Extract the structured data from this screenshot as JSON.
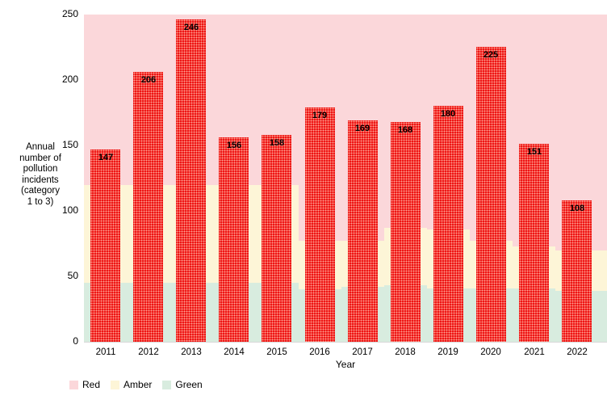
{
  "chart_data": {
    "type": "bar",
    "xlabel": "Year",
    "ylabel": "Annual\nnumber of\npollution\nincidents\n(category\n1 to 3)",
    "ylim": [
      0,
      250
    ],
    "y_ticks": [
      0,
      50,
      100,
      150,
      200,
      250
    ],
    "categories": [
      "2011",
      "2012",
      "2013",
      "2014",
      "2015",
      "2016",
      "2017",
      "2018",
      "2019",
      "2020",
      "2021",
      "2022"
    ],
    "series": [
      {
        "name": "Annual number of pollution incidents (category 1 to 3)",
        "values": [
          147,
          206,
          246,
          156,
          158,
          179,
          169,
          168,
          180,
          225,
          151,
          108
        ]
      }
    ],
    "bar_value_labels": true,
    "bar_color": "#ee1111",
    "bar_pattern": "dotted",
    "grid": false,
    "legend_position": "bottom-left",
    "legend": [
      {
        "label": "Red",
        "color": "#fbd7da"
      },
      {
        "label": "Amber",
        "color": "#fdf5d7"
      },
      {
        "label": "Green",
        "color": "#d8ecdf"
      }
    ],
    "rag_bands_per_year": [
      {
        "year": "2011",
        "green_max": 45,
        "amber_max": 120
      },
      {
        "year": "2012",
        "green_max": 45,
        "amber_max": 120
      },
      {
        "year": "2013",
        "green_max": 45,
        "amber_max": 120
      },
      {
        "year": "2014",
        "green_max": 45,
        "amber_max": 120
      },
      {
        "year": "2015",
        "green_max": 45,
        "amber_max": 120
      },
      {
        "year": "2016",
        "green_max": 40,
        "amber_max": 77
      },
      {
        "year": "2017",
        "green_max": 42,
        "amber_max": 77
      },
      {
        "year": "2018",
        "green_max": 43,
        "amber_max": 87
      },
      {
        "year": "2019",
        "green_max": 41,
        "amber_max": 86
      },
      {
        "year": "2020",
        "green_max": 41,
        "amber_max": 77
      },
      {
        "year": "2021",
        "green_max": 41,
        "amber_max": 73
      },
      {
        "year": "2022",
        "green_max": 39,
        "amber_max": 70
      }
    ],
    "axis_line_color": "#d9d9d9",
    "text_color": "#000000"
  }
}
